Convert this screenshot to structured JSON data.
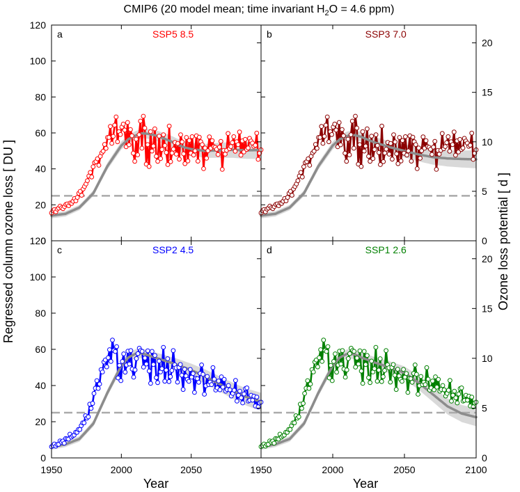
{
  "figure": {
    "title_main": "CMIP6 (20 model mean; time invariant H",
    "title_sub": "2",
    "title_rest": "O = 4.6 ppm)",
    "ylabel_left": "Regressed column ozone loss [ DU ]",
    "ylabel_right": "Ozone loss potential [ d ]",
    "xlabel": "Year",
    "colors": {
      "ssp585": "#ff0000",
      "ssp370": "#8b0000",
      "ssp245": "#0000ff",
      "ssp126": "#008000",
      "fit": "#8c8c8c",
      "band": "#d9d9d9",
      "dash": "#aaaaaa"
    }
  },
  "chart_data": [
    {
      "type": "line",
      "panel": "a",
      "title": "SSP5 8.5",
      "color": "#ff0000",
      "ylim": [
        0,
        120
      ],
      "xlim": [
        1950,
        2100
      ],
      "y2lim": [
        0,
        21.8
      ],
      "yticks": [
        0,
        20,
        40,
        60,
        80,
        100,
        120
      ],
      "y2ticks": [
        0,
        5,
        10,
        15,
        20
      ],
      "xticks": [
        1950,
        2000,
        2050
      ],
      "threshold": 25,
      "x_start": 1950,
      "x_end": 2100,
      "observed": [
        15.5,
        16.8,
        17.4,
        16.1,
        17.6,
        18.2,
        19.3,
        18.4,
        17.9,
        19.0,
        20.2,
        20.5,
        19.5,
        21.0,
        20.8,
        22.0,
        23.5,
        22.2,
        24.1,
        26.4,
        27.5,
        25.3,
        28.8,
        30.2,
        31.6,
        33.4,
        36.0,
        38.0,
        35.5,
        41.2,
        43.5,
        44.0,
        45.6,
        42.0,
        47.0,
        48.9,
        49.8,
        53.6,
        51.4,
        57.5,
        57.5,
        63.6,
        54.2,
        58.1,
        64.3,
        68.9,
        55.1,
        60.7,
        59.1,
        63.3,
        64.9,
        61.6,
        52.3,
        65.8,
        53.4,
        61.9,
        58.4,
        48.7,
        44.2,
        56.5,
        47.8,
        59.0,
        66.6,
        51.5,
        69.3,
        62.7,
        42.6,
        53.5,
        41.3,
        60.7,
        49.9,
        52.7,
        62.3,
        47.0,
        44.2,
        58.2,
        45.7,
        50.8,
        59.0,
        53.0,
        49.1,
        42.4,
        63.8,
        44.0,
        48.8,
        51.0,
        54.7,
        48.2,
        54.1,
        45.4,
        59.0,
        55.0,
        48.4,
        42.9,
        57.5,
        44.4,
        55.8,
        48.7,
        57.9,
        47.7,
        50.0,
        58.4,
        44.3,
        57.6,
        55.1,
        53.5,
        40.1,
        51.6,
        45.9,
        50.1,
        57.8,
        51.5,
        55.7,
        52.4,
        52.0,
        50.9,
        48.0,
        52.1,
        55.3,
        39.7,
        50.3,
        48.2,
        50.3,
        59.7,
        51.2,
        52.4,
        54.6,
        57.9,
        49.8,
        55.1,
        53.5,
        60.5,
        47.6,
        55.6,
        49.4,
        56.4,
        50.8,
        51.6,
        57.0,
        55.5,
        54.3,
        52.5,
        53.1,
        59.9,
        45.3,
        48.7,
        50.6
      ],
      "fit": [
        [
          1950,
          14
        ],
        [
          1960,
          15
        ],
        [
          1970,
          18.5
        ],
        [
          1980,
          26.5
        ],
        [
          1990,
          41.5
        ],
        [
          2000,
          53
        ],
        [
          2005,
          56.5
        ],
        [
          2010,
          58.5
        ],
        [
          2015,
          59.8
        ],
        [
          2020,
          59.4
        ],
        [
          2025,
          58.5
        ],
        [
          2030,
          57
        ],
        [
          2035,
          55.5
        ],
        [
          2040,
          53.5
        ],
        [
          2045,
          52
        ],
        [
          2050,
          51
        ],
        [
          2060,
          50
        ],
        [
          2070,
          50.3
        ],
        [
          2080,
          50.6
        ],
        [
          2090,
          50.3
        ],
        [
          2100,
          50.5
        ]
      ]
    },
    {
      "type": "line",
      "panel": "b",
      "title": "SSP3 7.0",
      "color": "#8b0000",
      "ylim": [
        0,
        120
      ],
      "xlim": [
        1950,
        2100
      ],
      "y2lim": [
        0,
        21.8
      ],
      "yticks": [
        0,
        20,
        40,
        60,
        80,
        100,
        120
      ],
      "y2ticks": [
        0,
        5,
        10,
        15,
        20
      ],
      "xticks": [
        1950,
        2000,
        2050,
        2100
      ],
      "threshold": 25,
      "x_start": 1950,
      "x_end": 2100,
      "observed": [
        15.5,
        16.8,
        17.4,
        16.1,
        17.6,
        18.2,
        19.3,
        18.4,
        17.9,
        19.0,
        20.2,
        20.5,
        19.5,
        21.0,
        20.8,
        22.0,
        23.5,
        22.2,
        24.1,
        26.4,
        27.5,
        25.3,
        28.8,
        30.2,
        31.6,
        33.4,
        36.0,
        38.0,
        35.5,
        41.2,
        43.5,
        44.0,
        45.6,
        42.0,
        47.0,
        48.9,
        49.8,
        53.6,
        51.4,
        57.5,
        57.5,
        63.6,
        54.2,
        58.1,
        64.3,
        68.9,
        55.1,
        60.7,
        59.1,
        63.3,
        64.9,
        61.6,
        52.3,
        65.8,
        53.4,
        61.9,
        58.4,
        48.7,
        44.2,
        56.5,
        47.8,
        59.0,
        66.6,
        51.5,
        69.3,
        62.7,
        42.6,
        53.5,
        41.3,
        60.7,
        49.9,
        52.7,
        62.3,
        47.0,
        44.2,
        58.2,
        45.7,
        50.8,
        59.0,
        53.0,
        49.1,
        42.4,
        63.8,
        44.0,
        48.8,
        51.0,
        54.7,
        48.2,
        54.1,
        45.4,
        59.0,
        55.0,
        48.4,
        42.9,
        57.5,
        44.4,
        55.8,
        48.7,
        57.9,
        47.7,
        50.0,
        58.4,
        44.3,
        57.6,
        55.1,
        53.5,
        40.1,
        51.6,
        45.9,
        50.1,
        57.8,
        51.5,
        55.7,
        52.4,
        52.0,
        50.9,
        48.0,
        52.1,
        55.3,
        39.7,
        50.3,
        48.2,
        50.3,
        59.7,
        51.2,
        52.4,
        54.6,
        57.9,
        49.8,
        55.1,
        53.5,
        60.5,
        47.6,
        55.6,
        49.4,
        56.4,
        50.8,
        51.6,
        57.0,
        55.5,
        54.3,
        52.5,
        53.1,
        59.9,
        45.3,
        48.7,
        50.6
      ],
      "fit": [
        [
          1950,
          14
        ],
        [
          1960,
          15
        ],
        [
          1970,
          18.5
        ],
        [
          1980,
          26.5
        ],
        [
          1990,
          41.5
        ],
        [
          2000,
          53
        ],
        [
          2005,
          56.5
        ],
        [
          2010,
          58.3
        ],
        [
          2015,
          58.8
        ],
        [
          2020,
          57.8
        ],
        [
          2025,
          56
        ],
        [
          2030,
          54.5
        ],
        [
          2035,
          53.3
        ],
        [
          2040,
          52
        ],
        [
          2050,
          50
        ],
        [
          2060,
          48
        ],
        [
          2070,
          46.5
        ],
        [
          2080,
          45.8
        ],
        [
          2090,
          45.5
        ],
        [
          2100,
          45.3
        ]
      ]
    },
    {
      "type": "line",
      "panel": "c",
      "title": "SSP2 4.5",
      "color": "#0000ff",
      "ylim": [
        0,
        120
      ],
      "xlim": [
        1950,
        2100
      ],
      "y2lim": [
        0,
        21.8
      ],
      "yticks": [
        0,
        20,
        40,
        60,
        80,
        100,
        120
      ],
      "y2ticks": [
        0,
        5,
        10,
        15,
        20
      ],
      "xticks": [
        1950,
        2000,
        2050
      ],
      "threshold": 25,
      "x_start": 1950,
      "x_end": 2100,
      "observed": [
        6.2,
        6.9,
        7.7,
        6.5,
        7.4,
        7.5,
        9.4,
        8.7,
        9.3,
        8.1,
        10.7,
        10.5,
        10.4,
        13.1,
        11.5,
        12.2,
        12.6,
        14.2,
        14.1,
        15.7,
        15.7,
        17.8,
        19.4,
        19.4,
        23.3,
        22.0,
        22.7,
        29.7,
        27.4,
        30.1,
        35.6,
        38.5,
        42.7,
        38.4,
        40.8,
        48.8,
        47.5,
        53.0,
        54.1,
        50.3,
        55.4,
        59.8,
        53.3,
        65.1,
        59.4,
        58.8,
        61.5,
        44.2,
        51.1,
        42.7,
        53.3,
        57.5,
        47.4,
        51.3,
        59.0,
        51.9,
        59.3,
        49.1,
        44.6,
        48.6,
        54.9,
        57.6,
        60.6,
        59.4,
        58.9,
        50.2,
        55.2,
        51.9,
        59.2,
        48.0,
        41.2,
        58.9,
        51.6,
        56.6,
        44.4,
        41.6,
        53.5,
        47.5,
        49.3,
        61.1,
        42.4,
        48.5,
        54.8,
        42.2,
        44.9,
        48.3,
        59.3,
        51.5,
        49.8,
        41.9,
        50.0,
        51.6,
        45.7,
        37.8,
        49.0,
        45.3,
        43.4,
        42.3,
        48.9,
        44.6,
        46.6,
        36.2,
        44.0,
        43.8,
        41.8,
        46.7,
        51.4,
        46.2,
        35.2,
        39.9,
        45.0,
        40.5,
        41.9,
        40.5,
        49.9,
        43.5,
        37.5,
        38.7,
        42.5,
        37.6,
        44.8,
        39.1,
        43.4,
        36.9,
        37.8,
        40.0,
        37.6,
        34.2,
        35.6,
        37.4,
        42.8,
        31.4,
        34.6,
        36.9,
        33.2,
        30.4,
        35.3,
        38.3,
        38.7,
        31.4,
        31.8,
        34.6,
        31.9,
        34.1,
        28.7,
        33.6,
        28.2,
        30.4,
        30.8
      ],
      "fit": [
        [
          1950,
          6
        ],
        [
          1960,
          7.5
        ],
        [
          1970,
          10.5
        ],
        [
          1980,
          19
        ],
        [
          1990,
          36
        ],
        [
          2000,
          51
        ],
        [
          2005,
          55.5
        ],
        [
          2010,
          57.5
        ],
        [
          2015,
          57.8
        ],
        [
          2020,
          56.5
        ],
        [
          2030,
          54
        ],
        [
          2040,
          51.5
        ],
        [
          2050,
          48.5
        ],
        [
          2060,
          45
        ],
        [
          2070,
          41
        ],
        [
          2080,
          37
        ],
        [
          2090,
          33.5
        ],
        [
          2100,
          31
        ]
      ]
    },
    {
      "type": "line",
      "panel": "d",
      "title": "SSP1 2.6",
      "color": "#008000",
      "ylim": [
        0,
        120
      ],
      "xlim": [
        1950,
        2100
      ],
      "y2lim": [
        0,
        21.8
      ],
      "yticks": [
        0,
        20,
        40,
        60,
        80,
        100,
        120
      ],
      "y2ticks": [
        0,
        5,
        10,
        15,
        20
      ],
      "xticks": [
        1950,
        2000,
        2050,
        2100
      ],
      "threshold": 25,
      "x_start": 1950,
      "x_end": 2100,
      "observed": [
        6.2,
        6.9,
        7.7,
        6.5,
        7.4,
        7.5,
        9.4,
        8.7,
        9.3,
        8.1,
        10.7,
        10.5,
        10.4,
        13.1,
        11.5,
        12.2,
        12.6,
        14.2,
        14.1,
        15.7,
        15.7,
        17.8,
        19.4,
        19.4,
        23.3,
        22.0,
        22.7,
        29.7,
        27.4,
        30.1,
        35.6,
        38.5,
        42.7,
        38.4,
        40.8,
        48.8,
        47.5,
        53.0,
        54.1,
        50.3,
        55.4,
        59.8,
        53.3,
        65.1,
        59.4,
        58.8,
        61.5,
        44.2,
        51.1,
        42.7,
        53.3,
        57.5,
        47.4,
        51.3,
        59.0,
        51.9,
        59.3,
        49.1,
        44.6,
        48.6,
        54.9,
        57.6,
        60.6,
        59.4,
        58.9,
        50.2,
        55.2,
        51.9,
        59.2,
        48.0,
        41.2,
        58.9,
        51.6,
        56.6,
        44.4,
        41.6,
        53.5,
        47.5,
        49.3,
        61.1,
        42.4,
        48.5,
        54.8,
        42.2,
        44.9,
        48.3,
        59.3,
        51.5,
        49.8,
        41.9,
        50.0,
        51.6,
        45.7,
        37.8,
        49.0,
        45.3,
        43.4,
        42.3,
        48.9,
        44.6,
        46.6,
        36.2,
        44.0,
        43.8,
        41.8,
        46.7,
        51.4,
        46.2,
        35.2,
        39.9,
        45.0,
        40.5,
        41.9,
        40.5,
        49.9,
        43.5,
        37.5,
        38.7,
        42.5,
        37.6,
        44.8,
        39.1,
        43.4,
        36.9,
        37.8,
        40.0,
        37.6,
        34.2,
        35.6,
        37.4,
        42.8,
        31.4,
        34.6,
        36.9,
        33.2,
        30.4,
        35.3,
        38.3,
        38.7,
        31.4,
        31.8,
        34.6,
        31.9,
        34.1,
        28.7,
        33.6,
        28.2,
        30.4,
        30.8
      ],
      "fit": [
        [
          1950,
          6
        ],
        [
          1960,
          7.5
        ],
        [
          1970,
          10.5
        ],
        [
          1980,
          19
        ],
        [
          1990,
          36
        ],
        [
          2000,
          51
        ],
        [
          2005,
          55.5
        ],
        [
          2010,
          57.5
        ],
        [
          2015,
          57.3
        ],
        [
          2020,
          55.5
        ],
        [
          2030,
          52.5
        ],
        [
          2040,
          50
        ],
        [
          2050,
          47
        ],
        [
          2060,
          41.5
        ],
        [
          2070,
          35
        ],
        [
          2080,
          28.5
        ],
        [
          2090,
          24.5
        ],
        [
          2100,
          22.5
        ]
      ]
    }
  ]
}
